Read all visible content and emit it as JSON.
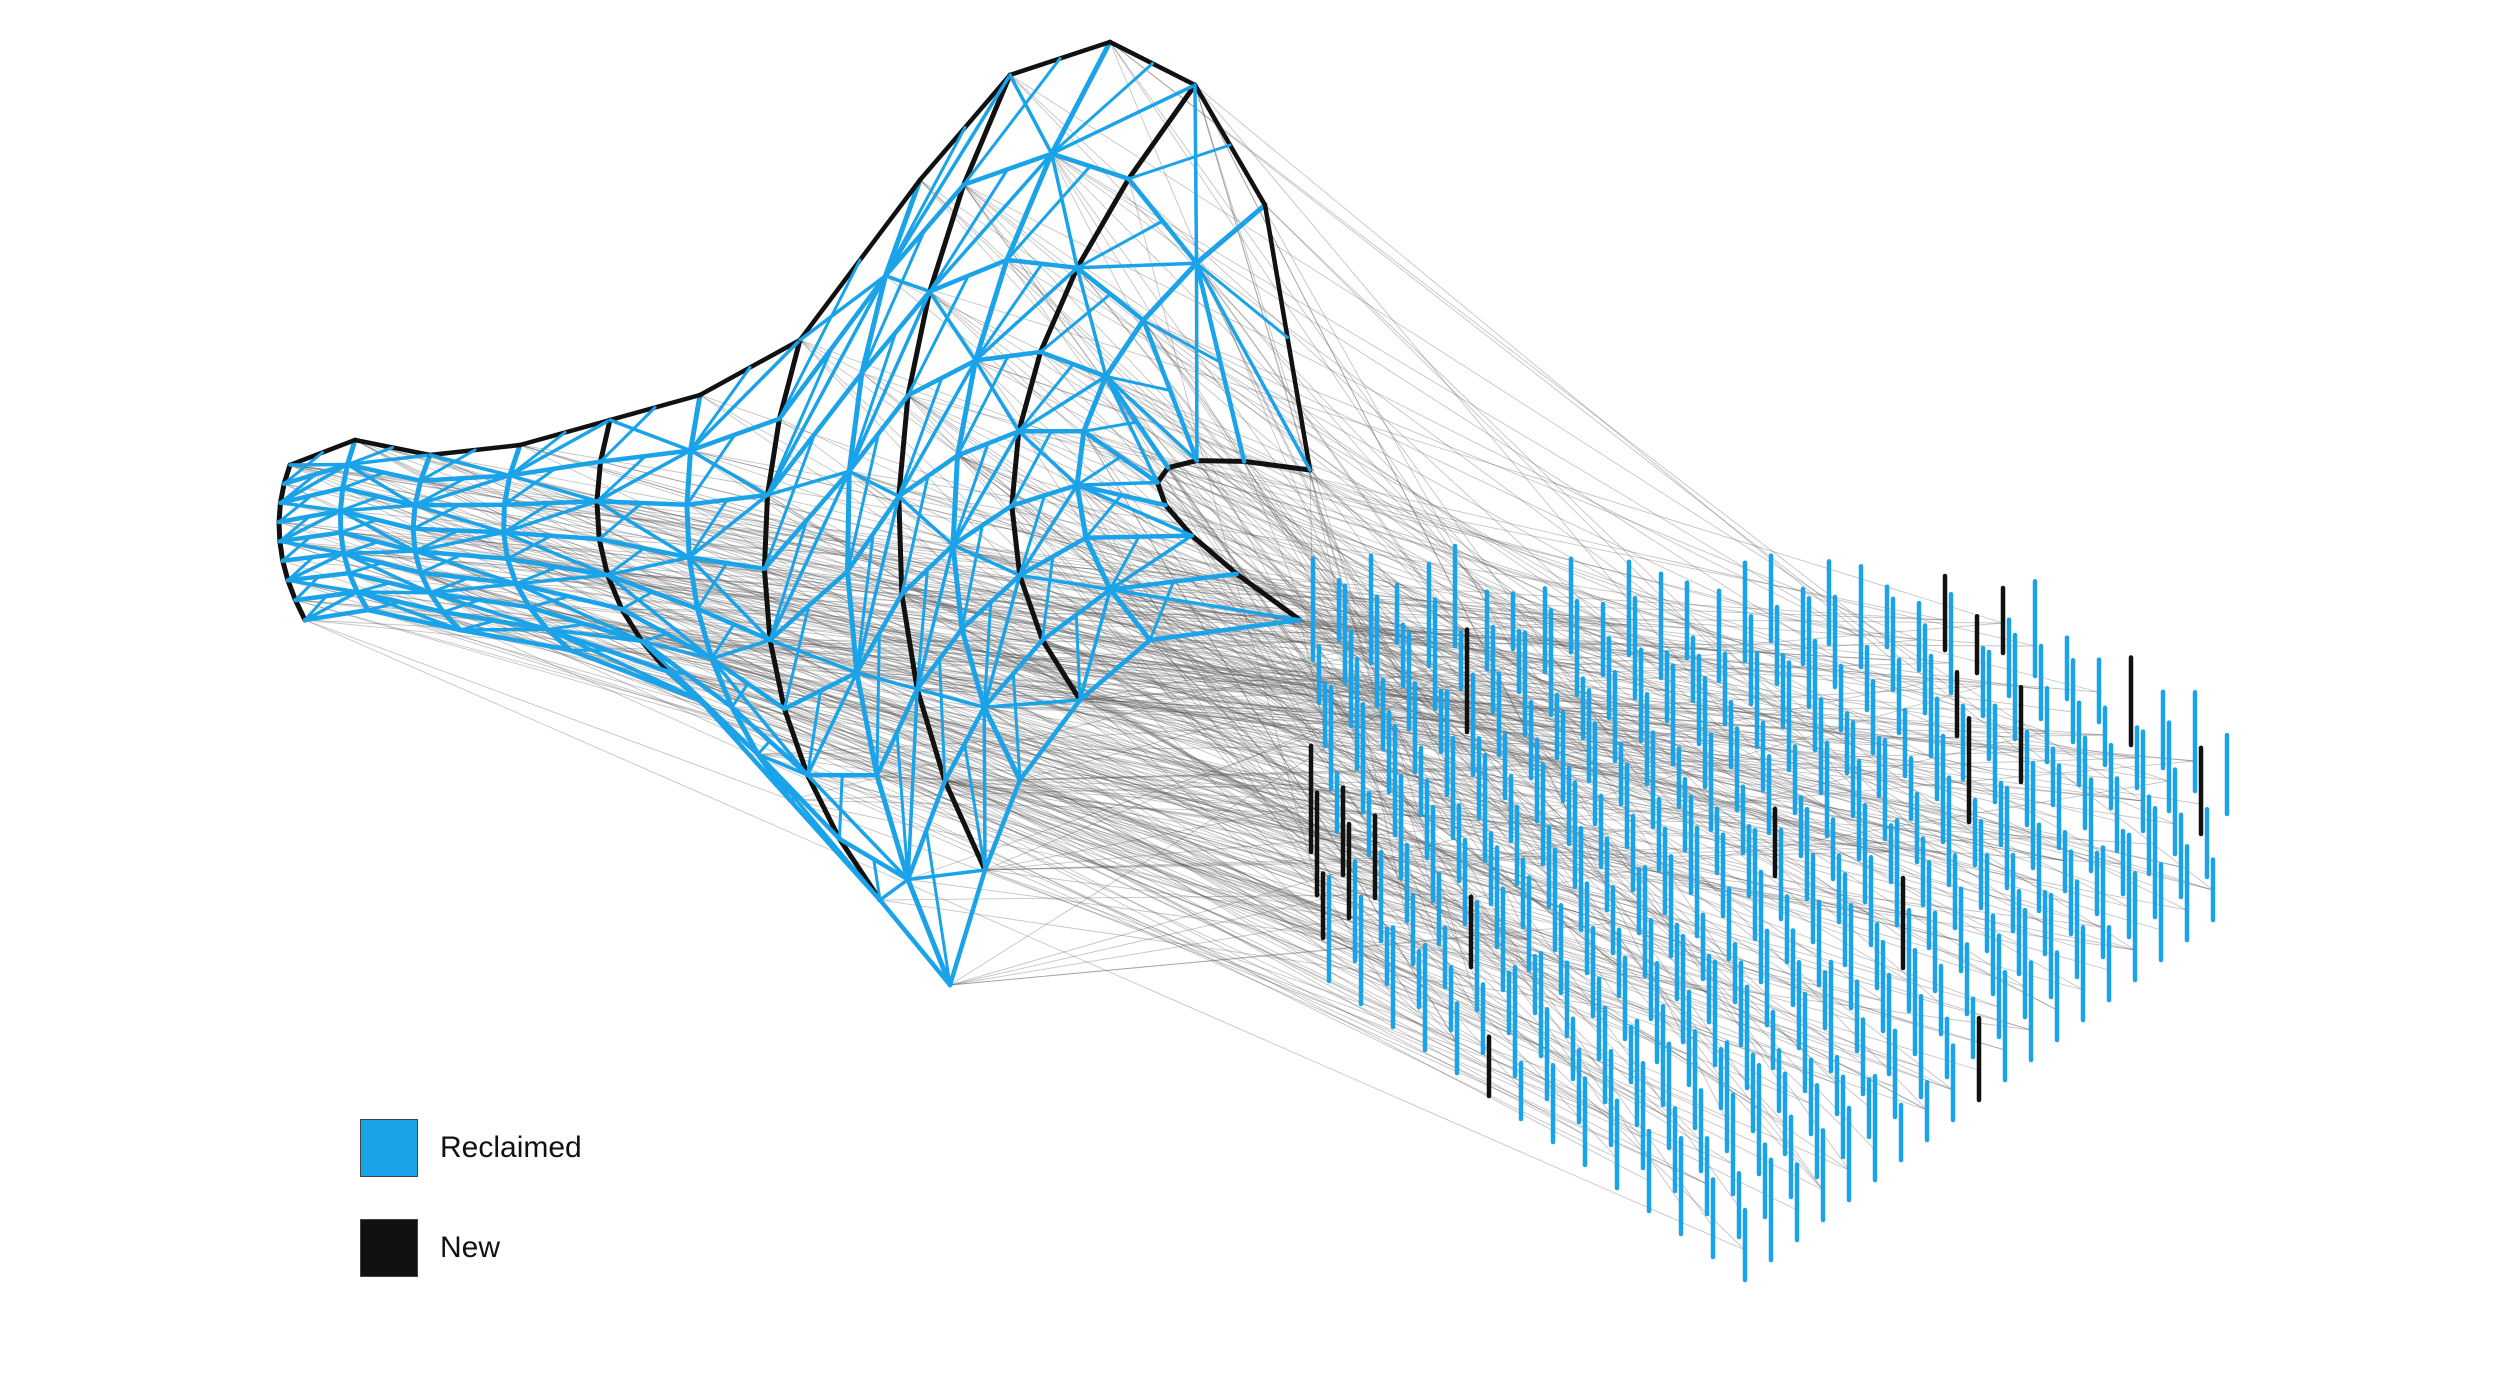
{
  "colors": {
    "reclaimed": "#1aa3e8",
    "new": "#111111",
    "assignment_lines": "#555555",
    "background": "#ffffff"
  },
  "legend": [
    {
      "key": "reclaimed",
      "label": "Reclaimed",
      "color": "#1aa3e8"
    },
    {
      "key": "new",
      "label": "New",
      "color": "#111111"
    }
  ]
}
